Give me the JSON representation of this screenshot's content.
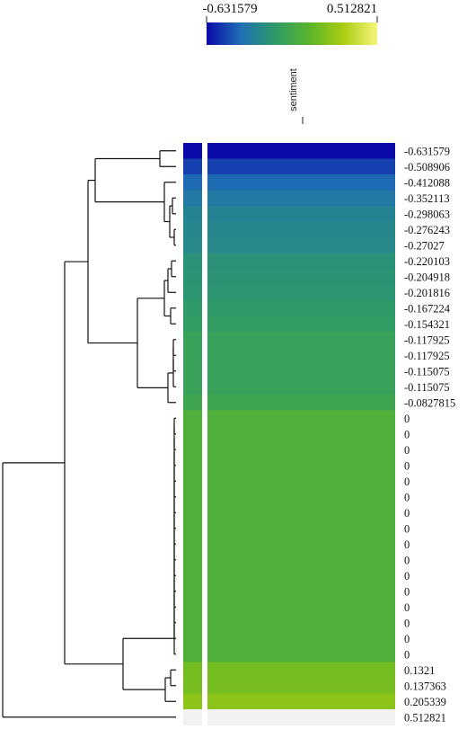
{
  "chart_data": {
    "type": "heatmap",
    "legend": {
      "title": "sentiment",
      "min_label": "-0.631579",
      "max_label": "0.512821",
      "min": -0.631579,
      "max": 0.512821,
      "colors": [
        "#0b0aa8",
        "#1f6fb5",
        "#2e9a6a",
        "#58b52a",
        "#a9cc10",
        "#f6f67a"
      ]
    },
    "rows": [
      {
        "label": "-0.631579",
        "value": -0.631579
      },
      {
        "label": "-0.508906",
        "value": -0.508906
      },
      {
        "label": "-0.412088",
        "value": -0.412088
      },
      {
        "label": "-0.352113",
        "value": -0.352113
      },
      {
        "label": "-0.298063",
        "value": -0.298063
      },
      {
        "label": "-0.276243",
        "value": -0.276243
      },
      {
        "label": "-0.27027",
        "value": -0.27027
      },
      {
        "label": "-0.220103",
        "value": -0.220103
      },
      {
        "label": "-0.204918",
        "value": -0.204918
      },
      {
        "label": "-0.201816",
        "value": -0.201816
      },
      {
        "label": "-0.167224",
        "value": -0.167224
      },
      {
        "label": "-0.154321",
        "value": -0.154321
      },
      {
        "label": "-0.117925",
        "value": -0.117925
      },
      {
        "label": "-0.117925",
        "value": -0.117925
      },
      {
        "label": "-0.115075",
        "value": -0.115075
      },
      {
        "label": "-0.115075",
        "value": -0.115075
      },
      {
        "label": "-0.0827815",
        "value": -0.0827815
      },
      {
        "label": "0",
        "value": 0
      },
      {
        "label": "0",
        "value": 0
      },
      {
        "label": "0",
        "value": 0
      },
      {
        "label": "0",
        "value": 0
      },
      {
        "label": "0",
        "value": 0
      },
      {
        "label": "0",
        "value": 0
      },
      {
        "label": "0",
        "value": 0
      },
      {
        "label": "0",
        "value": 0
      },
      {
        "label": "0",
        "value": 0
      },
      {
        "label": "0",
        "value": 0
      },
      {
        "label": "0",
        "value": 0
      },
      {
        "label": "0",
        "value": 0
      },
      {
        "label": "0",
        "value": 0
      },
      {
        "label": "0",
        "value": 0
      },
      {
        "label": "0",
        "value": 0
      },
      {
        "label": "0",
        "value": 0
      },
      {
        "label": "0.1321",
        "value": 0.1321
      },
      {
        "label": "0.137363",
        "value": 0.137363
      },
      {
        "label": "0.205339",
        "value": 0.205339
      },
      {
        "label": "0.512821",
        "value": 0.512821
      }
    ],
    "dendrogram": "row clustering tree drawn on the left"
  }
}
